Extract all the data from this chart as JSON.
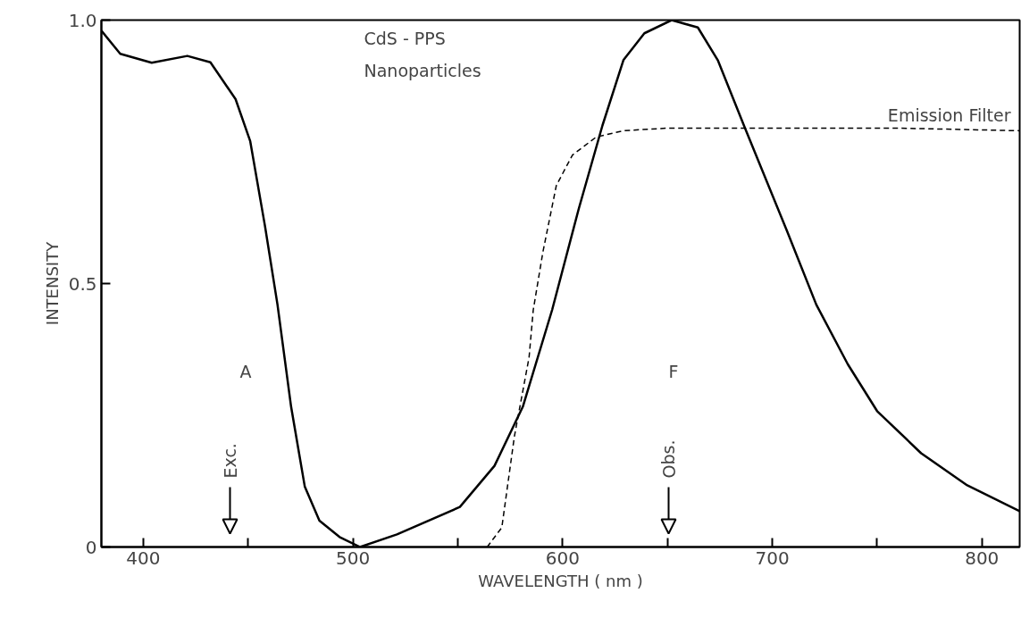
{
  "chart_data": {
    "type": "line",
    "xlabel": "WAVELENGTH ( nm )",
    "ylabel": "INTENSITY",
    "xlim": [
      380,
      818
    ],
    "ylim": [
      0,
      1.0
    ],
    "xticks": [
      400,
      {
        "value": 450,
        "label": null
      },
      500,
      {
        "value": 550,
        "label": null
      },
      600,
      {
        "value": 650,
        "label": null
      },
      700,
      {
        "value": 750,
        "label": null
      },
      800
    ],
    "yticks": [
      0,
      0.5,
      {
        "value": 1.0,
        "label": "1.0"
      }
    ],
    "grid": false,
    "series": [
      {
        "color": "#000000",
        "line_style": "solid",
        "x": [
          380,
          389,
          404,
          421,
          432,
          444,
          451,
          458,
          464,
          470.5,
          477,
          484,
          493.6,
          503.4,
          521,
          551,
          567.5,
          581,
          595,
          607.7,
          619,
          629,
          639,
          652,
          664.5,
          674,
          687,
          707,
          721,
          736,
          750,
          771,
          793,
          818
        ],
        "values": [
          0.98,
          0.936,
          0.919,
          0.932,
          0.92,
          0.85,
          0.77,
          0.61,
          0.46,
          0.266,
          0.115,
          0.05,
          0.019,
          0.0,
          0.024,
          0.076,
          0.154,
          0.266,
          0.45,
          0.642,
          0.8,
          0.924,
          0.975,
          1.0,
          0.986,
          0.924,
          0.795,
          0.6,
          0.46,
          0.347,
          0.258,
          0.178,
          0.117,
          0.068
        ]
      },
      {
        "name": "Emission Filter",
        "color": "#000000",
        "line_style": "dashed",
        "x": [
          564,
          571,
          577,
          584,
          586,
          590.6,
          597,
          604.7,
          616,
          629,
          650,
          700,
          760,
          818
        ],
        "values": [
          0.0,
          0.037,
          0.21,
          0.36,
          0.45,
          0.56,
          0.686,
          0.744,
          0.778,
          0.79,
          0.795,
          0.795,
          0.795,
          0.79
        ]
      }
    ],
    "annotations": [
      "CdS - PPS",
      "Nanoparticles",
      "A",
      "F",
      "Exc.",
      "Obs."
    ]
  }
}
